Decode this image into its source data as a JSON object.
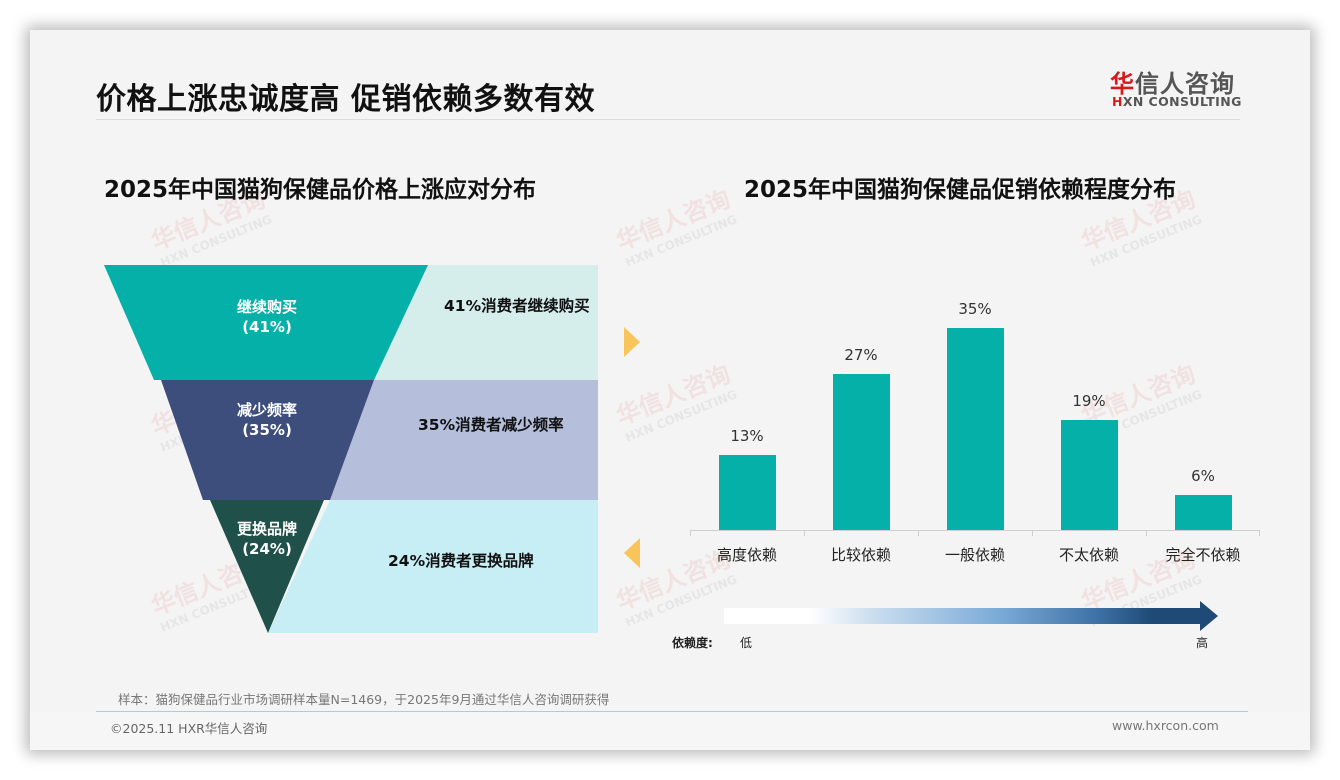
{
  "header": {
    "title": "价格上涨忠诚度高 促销依赖多数有效",
    "logo": {
      "cn_mark": "华",
      "cn_rest": "信人咨询",
      "en_mark": "H",
      "en_rest": "XN CONSULTING"
    }
  },
  "left_section": {
    "title": "2025年中国猫狗保健品价格上涨应对分布",
    "funnel": [
      {
        "label": "继续购买",
        "pct": "(41%)",
        "desc": "41%消费者继续购买",
        "color": "#05b0a9",
        "panel_color": "#d6eeeb"
      },
      {
        "label": "减少频率",
        "pct": "(35%)",
        "desc": "35%消费者减少频率",
        "color": "#3d4d7c",
        "panel_color": "#b5bfdc"
      },
      {
        "label": "更换品牌",
        "pct": "(24%)",
        "desc": "24%消费者更换品牌",
        "color": "#1f5049",
        "panel_color": "#c8eef5"
      }
    ]
  },
  "right_section": {
    "title": "2025年中国猫狗保健品促销依赖程度分布",
    "scale_legend": {
      "label": "依赖度:",
      "low": "低",
      "high": "高"
    }
  },
  "chart_data": [
    {
      "type": "funnel",
      "title": "2025年中国猫狗保健品价格上涨应对分布",
      "categories": [
        "继续购买",
        "减少频率",
        "更换品牌"
      ],
      "values": [
        41,
        35,
        24
      ],
      "unit": "%",
      "annotations": [
        "41%消费者继续购买",
        "35%消费者减少频率",
        "24%消费者更换品牌"
      ]
    },
    {
      "type": "bar",
      "title": "2025年中国猫狗保健品促销依赖程度分布",
      "categories": [
        "高度依赖",
        "比较依赖",
        "一般依赖",
        "不太依赖",
        "完全不依赖"
      ],
      "values": [
        13,
        27,
        35,
        19,
        6
      ],
      "value_labels": [
        "13%",
        "27%",
        "35%",
        "19%",
        "6%"
      ],
      "xlabel": "",
      "ylabel": "",
      "ylim": [
        0,
        35
      ],
      "grid": false,
      "legend": "none",
      "bar_color": "#05b0a9",
      "annotations": [
        "依赖度: 低 → 高"
      ]
    }
  ],
  "footer": {
    "note": "样本：猫狗保健品行业市场调研样本量N=1469，于2025年9月通过华信人咨询调研获得",
    "copyright": "©2025.11 HXR华信人咨询",
    "website": "www.hxrcon.com"
  },
  "watermark": {
    "cn": "华信人咨询",
    "en": "HXN CONSULTING"
  }
}
